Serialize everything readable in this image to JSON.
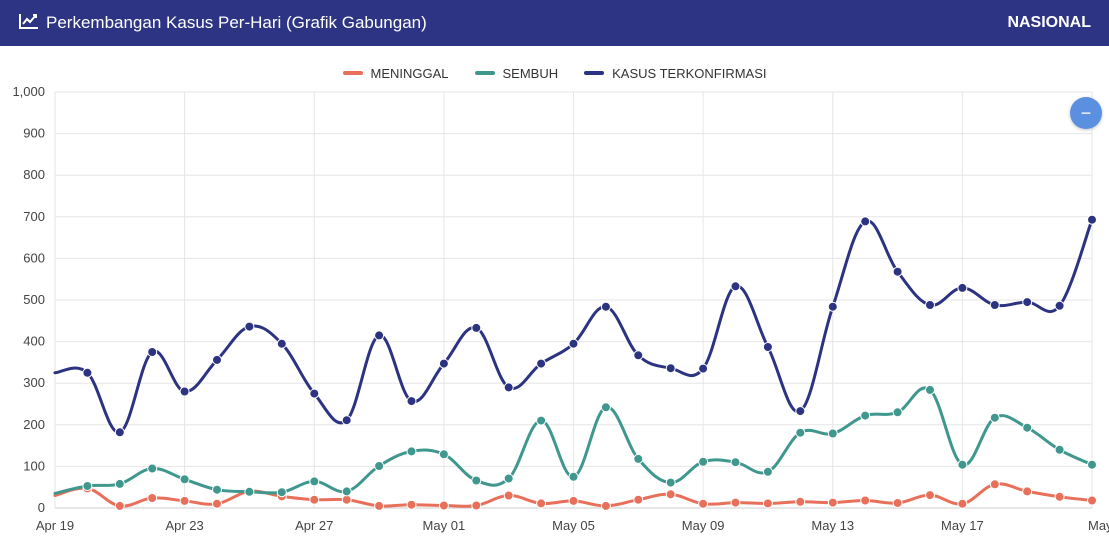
{
  "header": {
    "title": "Perkembangan Kasus Per-Hari (Grafik Gabungan)",
    "icon": "chart-line-icon",
    "region_label": "NASIONAL"
  },
  "zoom_button": {
    "symbol": "−",
    "icon": "zoom-out-icon"
  },
  "chart_data": {
    "type": "line",
    "title": "Perkembangan Kasus Per-Hari (Grafik Gabungan)",
    "xlabel": "",
    "ylabel": "",
    "ylim": [
      0,
      1000
    ],
    "y_ticks": [
      0,
      100,
      200,
      300,
      400,
      500,
      600,
      700,
      800,
      900,
      1000
    ],
    "y_tick_labels": [
      "0",
      "100",
      "200",
      "300",
      "400",
      "500",
      "600",
      "700",
      "800",
      "900",
      "1,000"
    ],
    "x_tick_labels": [
      "Apr 19",
      "Apr 23",
      "Apr 27",
      "May 01",
      "May 05",
      "May 09",
      "May 13",
      "May 17",
      "May"
    ],
    "x": [
      "Apr 19",
      "Apr 20",
      "Apr 21",
      "Apr 22",
      "Apr 23",
      "Apr 24",
      "Apr 25",
      "Apr 26",
      "Apr 27",
      "Apr 28",
      "Apr 29",
      "Apr 30",
      "May 01",
      "May 02",
      "May 03",
      "May 04",
      "May 05",
      "May 06",
      "May 07",
      "May 08",
      "May 09",
      "May 10",
      "May 11",
      "May 12",
      "May 13",
      "May 14",
      "May 15",
      "May 16",
      "May 17",
      "May 18",
      "May 19",
      "May 20",
      "May 21"
    ],
    "grid": true,
    "legend_position": "top-center",
    "series": [
      {
        "name": "MENINGGAL",
        "color": "#e8705a",
        "values": [
          30,
          47,
          5,
          24,
          17,
          10,
          40,
          28,
          20,
          20,
          5,
          8,
          6,
          6,
          30,
          11,
          17,
          5,
          20,
          33,
          10,
          13,
          11,
          15,
          13,
          18,
          12,
          31,
          10,
          57,
          40,
          27,
          18
        ]
      },
      {
        "name": "SEMBUH",
        "color": "#3f978e",
        "values": [
          35,
          53,
          58,
          95,
          69,
          44,
          39,
          38,
          64,
          40,
          101,
          136,
          129,
          66,
          71,
          210,
          75,
          242,
          118,
          61,
          111,
          110,
          87,
          181,
          179,
          222,
          230,
          284,
          104,
          217,
          193,
          140,
          104
        ]
      },
      {
        "name": "KASUS TERKONFIRMASI",
        "color": "#2c3381",
        "values": [
          325,
          325,
          182,
          375,
          280,
          356,
          436,
          395,
          275,
          211,
          415,
          257,
          347,
          433,
          290,
          347,
          395,
          484,
          367,
          336,
          335,
          533,
          387,
          233,
          484,
          689,
          568,
          488,
          529,
          488,
          495,
          486,
          693
        ]
      }
    ]
  }
}
